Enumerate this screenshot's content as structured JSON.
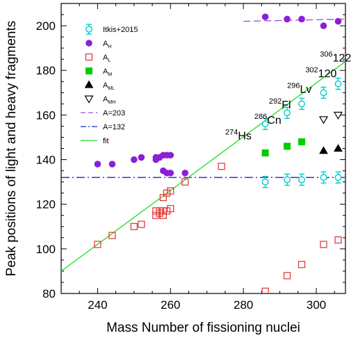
{
  "chart_data": {
    "type": "scatter",
    "xlabel": "Mass Number of fissioning nuclei",
    "ylabel": "Peak positions of light and heavy fragments",
    "xlim": [
      230,
      308
    ],
    "ylim": [
      80,
      210
    ],
    "xticks": [
      240,
      260,
      280,
      300
    ],
    "yticks": [
      80,
      100,
      120,
      140,
      160,
      180,
      200
    ],
    "grid": false,
    "legend_position": "top-left",
    "colors": {
      "itkis": "#00cccc",
      "AH": "#8b1fd6",
      "AL": "#e03030",
      "AM": "#00cc00",
      "AML": "#000000",
      "AMH": "#000000",
      "A203": "#a24ad8",
      "A132": "#2020c8",
      "fit": "#22dd22"
    },
    "series": [
      {
        "name": "Itkis+2015",
        "key": "itkis",
        "marker": "open-circle-errorbar",
        "points": [
          [
            286,
            130
          ],
          [
            292,
            131
          ],
          [
            296,
            131
          ],
          [
            302,
            132
          ],
          [
            306,
            132
          ],
          [
            286,
            156
          ],
          [
            292,
            161
          ],
          [
            296,
            165
          ],
          [
            302,
            170
          ],
          [
            306,
            174
          ]
        ],
        "error": 2.5
      },
      {
        "name": "AH",
        "base": "A",
        "sub": "H",
        "key": "AH",
        "marker": "filled-circle",
        "points": [
          [
            240,
            138
          ],
          [
            244,
            138
          ],
          [
            250,
            140
          ],
          [
            252,
            141
          ],
          [
            256,
            140
          ],
          [
            256,
            141
          ],
          [
            257,
            141
          ],
          [
            258,
            142
          ],
          [
            259,
            142
          ],
          [
            260,
            142
          ],
          [
            258,
            135
          ],
          [
            259,
            134
          ],
          [
            260,
            134
          ],
          [
            264,
            134
          ],
          [
            286,
            204
          ],
          [
            292,
            203
          ],
          [
            296,
            203
          ],
          [
            302,
            200
          ],
          [
            306,
            202
          ]
        ]
      },
      {
        "name": "AL",
        "base": "A",
        "sub": "L",
        "key": "AL",
        "marker": "open-square",
        "points": [
          [
            240,
            102
          ],
          [
            244,
            106
          ],
          [
            250,
            110
          ],
          [
            252,
            111
          ],
          [
            256,
            115
          ],
          [
            256,
            117
          ],
          [
            257,
            116
          ],
          [
            257,
            117
          ],
          [
            258,
            115
          ],
          [
            258,
            117
          ],
          [
            258,
            123
          ],
          [
            259,
            117
          ],
          [
            259,
            125
          ],
          [
            260,
            118
          ],
          [
            260,
            126
          ],
          [
            264,
            130
          ],
          [
            274,
            137
          ],
          [
            286,
            81
          ],
          [
            292,
            88
          ],
          [
            296,
            93
          ],
          [
            302,
            102
          ],
          [
            306,
            104
          ]
        ]
      },
      {
        "name": "AM",
        "base": "A",
        "sub": "M",
        "key": "AM",
        "marker": "filled-square",
        "points": [
          [
            286,
            143
          ],
          [
            292,
            146
          ],
          [
            296,
            148
          ]
        ]
      },
      {
        "name": "AML",
        "base": "A",
        "sub": "ML",
        "key": "AML",
        "marker": "filled-triangle-up",
        "points": [
          [
            302,
            144
          ],
          [
            306,
            145
          ]
        ]
      },
      {
        "name": "AMH",
        "base": "A",
        "sub": "MH",
        "key": "AMH",
        "marker": "open-triangle-down",
        "points": [
          [
            302,
            158
          ],
          [
            306,
            160
          ]
        ]
      }
    ],
    "lines": [
      {
        "name": "A=203",
        "key": "A203",
        "style": "dashed",
        "x": [
          280,
          308
        ],
        "y": [
          202,
          203
        ]
      },
      {
        "name": "A=132",
        "key": "A132",
        "style": "dashdot",
        "x": [
          230,
          308
        ],
        "y": [
          132,
          132
        ]
      },
      {
        "name": "fit",
        "key": "fit",
        "style": "solid",
        "x": [
          230,
          308
        ],
        "y": [
          90,
          184
        ]
      }
    ],
    "annotations": [
      {
        "mass": "274",
        "symbol": "Hs",
        "x": 275,
        "y": 149
      },
      {
        "mass": "286",
        "symbol": "Cn",
        "x": 283,
        "y": 156
      },
      {
        "mass": "292",
        "symbol": "Fl",
        "x": 287,
        "y": 163
      },
      {
        "mass": "296",
        "symbol": "Lv",
        "x": 292,
        "y": 170
      },
      {
        "mass": "302",
        "symbol": "120",
        "x": 297,
        "y": 177
      },
      {
        "mass": "306",
        "symbol": "122",
        "x": 301,
        "y": 184
      }
    ]
  }
}
